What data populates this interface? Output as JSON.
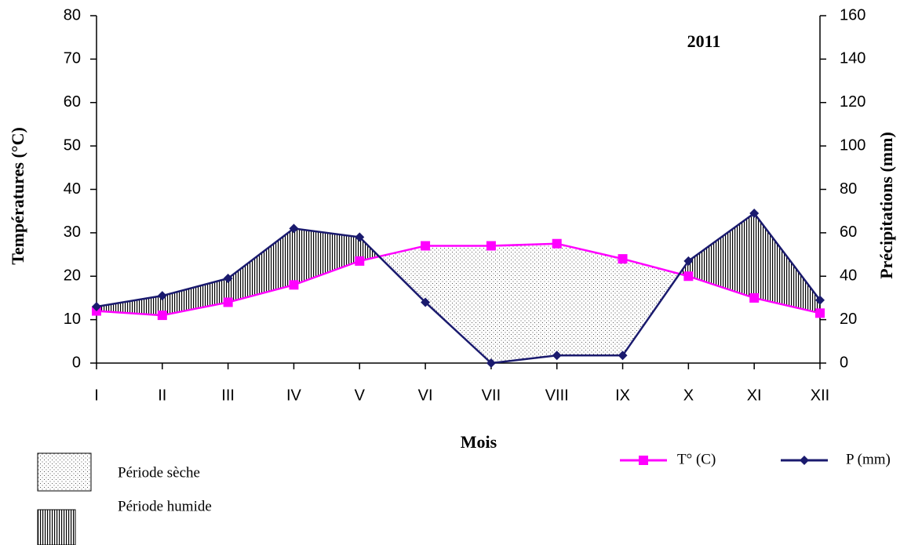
{
  "chart_data": {
    "type": "line",
    "annotation": "2011",
    "x_label": "Mois",
    "y_label": "Températures (°C)",
    "y2_label": "Précipitations (mm)",
    "categories": [
      "I",
      "II",
      "III",
      "IV",
      "V",
      "VI",
      "VII",
      "VIII",
      "IX",
      "X",
      "XI",
      "XII"
    ],
    "series": [
      {
        "name": "T° (C)",
        "color": "#ff00ff",
        "marker": "square",
        "axis": "y",
        "values": [
          12,
          11,
          14,
          18,
          23.5,
          27,
          27,
          27.5,
          24,
          20,
          15,
          11.5
        ]
      },
      {
        "name": "P (mm)",
        "color": "#1a1a6e",
        "marker": "diamond",
        "axis": "y2",
        "values": [
          26,
          31,
          39,
          62,
          58,
          28,
          0,
          3.5,
          3.5,
          47,
          69,
          29
        ]
      }
    ],
    "ylim": [
      0,
      80
    ],
    "yticks": [
      0,
      10,
      20,
      30,
      40,
      50,
      60,
      70,
      80
    ],
    "y2lim": [
      0,
      160
    ],
    "y2ticks": [
      0,
      20,
      40,
      60,
      80,
      100,
      120,
      140,
      160
    ],
    "period_legend": [
      "Période sèche",
      "Période humide"
    ]
  }
}
